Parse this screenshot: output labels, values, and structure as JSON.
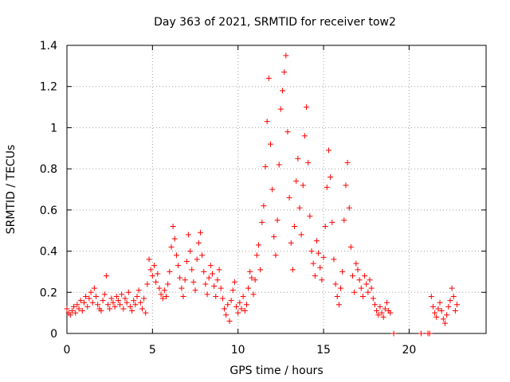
{
  "chart_data": {
    "type": "scatter",
    "title": "Day 363 of 2021, SRMTID for receiver tow2",
    "xlabel": "GPS time / hours",
    "ylabel": "SRMTID / TECUs",
    "xlim": [
      0,
      24.5
    ],
    "ylim": [
      0,
      1.4
    ],
    "xticks": [
      0,
      5,
      10,
      15,
      20
    ],
    "yticks": [
      0,
      0.2,
      0.4,
      0.6,
      0.8,
      1,
      1.2,
      1.4
    ],
    "xtick_labels": [
      "0",
      "5",
      "10",
      "15",
      "20"
    ],
    "ytick_labels": [
      "0",
      "0.2",
      "0.4",
      "0.6",
      "0.8",
      "1",
      "1.2",
      "1.4"
    ],
    "grid": true,
    "marker": "+",
    "color": "#ff0000",
    "series": [
      {
        "name": "SRMTID",
        "points": [
          [
            0.0,
            0.12
          ],
          [
            0.1,
            0.1
          ],
          [
            0.2,
            0.09
          ],
          [
            0.3,
            0.11
          ],
          [
            0.4,
            0.13
          ],
          [
            0.5,
            0.1
          ],
          [
            0.6,
            0.14
          ],
          [
            0.7,
            0.12
          ],
          [
            0.8,
            0.16
          ],
          [
            0.9,
            0.11
          ],
          [
            1.0,
            0.15
          ],
          [
            1.1,
            0.18
          ],
          [
            1.2,
            0.13
          ],
          [
            1.3,
            0.17
          ],
          [
            1.4,
            0.2
          ],
          [
            1.5,
            0.15
          ],
          [
            1.6,
            0.22
          ],
          [
            1.7,
            0.18
          ],
          [
            1.8,
            0.14
          ],
          [
            1.9,
            0.12
          ],
          [
            2.0,
            0.11
          ],
          [
            2.1,
            0.16
          ],
          [
            2.2,
            0.19
          ],
          [
            2.3,
            0.28
          ],
          [
            2.4,
            0.14
          ],
          [
            2.5,
            0.12
          ],
          [
            2.6,
            0.17
          ],
          [
            2.7,
            0.15
          ],
          [
            2.8,
            0.13
          ],
          [
            2.9,
            0.18
          ],
          [
            3.0,
            0.16
          ],
          [
            3.1,
            0.14
          ],
          [
            3.2,
            0.19
          ],
          [
            3.3,
            0.12
          ],
          [
            3.4,
            0.17
          ],
          [
            3.5,
            0.15
          ],
          [
            3.6,
            0.2
          ],
          [
            3.7,
            0.13
          ],
          [
            3.8,
            0.11
          ],
          [
            3.9,
            0.16
          ],
          [
            4.0,
            0.14
          ],
          [
            4.1,
            0.18
          ],
          [
            4.2,
            0.21
          ],
          [
            4.3,
            0.15
          ],
          [
            4.4,
            0.12
          ],
          [
            4.5,
            0.17
          ],
          [
            4.6,
            0.1
          ],
          [
            4.7,
            0.24
          ],
          [
            4.8,
            0.36
          ],
          [
            4.9,
            0.31
          ],
          [
            5.0,
            0.28
          ],
          [
            5.1,
            0.33
          ],
          [
            5.2,
            0.25
          ],
          [
            5.3,
            0.29
          ],
          [
            5.4,
            0.22
          ],
          [
            5.5,
            0.19
          ],
          [
            5.6,
            0.17
          ],
          [
            5.7,
            0.21
          ],
          [
            5.8,
            0.18
          ],
          [
            5.9,
            0.24
          ],
          [
            6.0,
            0.3
          ],
          [
            6.1,
            0.42
          ],
          [
            6.2,
            0.52
          ],
          [
            6.3,
            0.46
          ],
          [
            6.4,
            0.38
          ],
          [
            6.5,
            0.33
          ],
          [
            6.6,
            0.27
          ],
          [
            6.7,
            0.22
          ],
          [
            6.8,
            0.18
          ],
          [
            6.9,
            0.26
          ],
          [
            7.0,
            0.35
          ],
          [
            7.1,
            0.48
          ],
          [
            7.2,
            0.4
          ],
          [
            7.3,
            0.31
          ],
          [
            7.4,
            0.25
          ],
          [
            7.5,
            0.21
          ],
          [
            7.6,
            0.36
          ],
          [
            7.7,
            0.44
          ],
          [
            7.8,
            0.49
          ],
          [
            7.9,
            0.38
          ],
          [
            8.0,
            0.3
          ],
          [
            8.1,
            0.24
          ],
          [
            8.2,
            0.19
          ],
          [
            8.3,
            0.27
          ],
          [
            8.4,
            0.33
          ],
          [
            8.5,
            0.29
          ],
          [
            8.6,
            0.23
          ],
          [
            8.7,
            0.18
          ],
          [
            8.8,
            0.26
          ],
          [
            8.9,
            0.31
          ],
          [
            9.0,
            0.22
          ],
          [
            9.1,
            0.17
          ],
          [
            9.2,
            0.12
          ],
          [
            9.3,
            0.09
          ],
          [
            9.4,
            0.14
          ],
          [
            9.5,
            0.06
          ],
          [
            9.6,
            0.16
          ],
          [
            9.7,
            0.21
          ],
          [
            9.8,
            0.25
          ],
          [
            9.9,
            0.13
          ],
          [
            10.0,
            0.1
          ],
          [
            10.1,
            0.15
          ],
          [
            10.2,
            0.12
          ],
          [
            10.3,
            0.18
          ],
          [
            10.4,
            0.11
          ],
          [
            10.5,
            0.14
          ],
          [
            10.6,
            0.22
          ],
          [
            10.7,
            0.3
          ],
          [
            10.8,
            0.27
          ],
          [
            10.9,
            0.19
          ],
          [
            11.0,
            0.26
          ],
          [
            11.1,
            0.38
          ],
          [
            11.2,
            0.43
          ],
          [
            11.3,
            0.31
          ],
          [
            11.4,
            0.54
          ],
          [
            11.5,
            0.62
          ],
          [
            11.6,
            0.81
          ],
          [
            11.7,
            1.03
          ],
          [
            11.8,
            1.24
          ],
          [
            11.9,
            0.92
          ],
          [
            12.0,
            0.7
          ],
          [
            12.1,
            0.47
          ],
          [
            12.2,
            0.38
          ],
          [
            12.3,
            0.55
          ],
          [
            12.4,
            0.82
          ],
          [
            12.5,
            1.09
          ],
          [
            12.6,
            1.18
          ],
          [
            12.7,
            1.27
          ],
          [
            12.8,
            1.35
          ],
          [
            12.9,
            0.98
          ],
          [
            13.0,
            0.66
          ],
          [
            13.1,
            0.44
          ],
          [
            13.2,
            0.31
          ],
          [
            13.3,
            0.52
          ],
          [
            13.4,
            0.74
          ],
          [
            13.5,
            0.85
          ],
          [
            13.6,
            0.61
          ],
          [
            13.7,
            0.48
          ],
          [
            13.8,
            0.72
          ],
          [
            13.9,
            0.96
          ],
          [
            14.0,
            1.1
          ],
          [
            14.1,
            0.83
          ],
          [
            14.2,
            0.57
          ],
          [
            14.3,
            0.4
          ],
          [
            14.4,
            0.34
          ],
          [
            14.5,
            0.28
          ],
          [
            14.6,
            0.45
          ],
          [
            14.7,
            0.39
          ],
          [
            14.8,
            0.32
          ],
          [
            14.9,
            0.26
          ],
          [
            15.0,
            0.37
          ],
          [
            15.1,
            0.52
          ],
          [
            15.2,
            0.71
          ],
          [
            15.3,
            0.89
          ],
          [
            15.4,
            0.76
          ],
          [
            15.5,
            0.54
          ],
          [
            15.6,
            0.36
          ],
          [
            15.7,
            0.24
          ],
          [
            15.8,
            0.18
          ],
          [
            15.9,
            0.14
          ],
          [
            16.0,
            0.22
          ],
          [
            16.1,
            0.3
          ],
          [
            16.2,
            0.55
          ],
          [
            16.3,
            0.72
          ],
          [
            16.4,
            0.83
          ],
          [
            16.5,
            0.61
          ],
          [
            16.6,
            0.42
          ],
          [
            16.7,
            0.28
          ],
          [
            16.8,
            0.2
          ],
          [
            16.9,
            0.34
          ],
          [
            17.0,
            0.31
          ],
          [
            17.1,
            0.26
          ],
          [
            17.2,
            0.22
          ],
          [
            17.3,
            0.18
          ],
          [
            17.4,
            0.28
          ],
          [
            17.5,
            0.24
          ],
          [
            17.6,
            0.2
          ],
          [
            17.7,
            0.26
          ],
          [
            17.8,
            0.22
          ],
          [
            17.9,
            0.17
          ],
          [
            18.0,
            0.14
          ],
          [
            18.1,
            0.11
          ],
          [
            18.2,
            0.09
          ],
          [
            18.3,
            0.13
          ],
          [
            18.4,
            0.1
          ],
          [
            18.5,
            0.08
          ],
          [
            18.6,
            0.12
          ],
          [
            18.7,
            0.15
          ],
          [
            18.8,
            0.11
          ],
          [
            18.9,
            0.1
          ],
          [
            19.1,
            0.0
          ],
          [
            20.7,
            0.0
          ],
          [
            21.1,
            0.0
          ],
          [
            21.2,
            0.0
          ],
          [
            21.3,
            0.18
          ],
          [
            21.4,
            0.13
          ],
          [
            21.5,
            0.1
          ],
          [
            21.6,
            0.08
          ],
          [
            21.7,
            0.12
          ],
          [
            21.8,
            0.15
          ],
          [
            21.9,
            0.11
          ],
          [
            22.0,
            0.07
          ],
          [
            22.1,
            0.05
          ],
          [
            22.2,
            0.09
          ],
          [
            22.3,
            0.13
          ],
          [
            22.4,
            0.16
          ],
          [
            22.5,
            0.22
          ],
          [
            22.6,
            0.18
          ],
          [
            22.7,
            0.11
          ],
          [
            22.8,
            0.14
          ]
        ]
      }
    ]
  }
}
